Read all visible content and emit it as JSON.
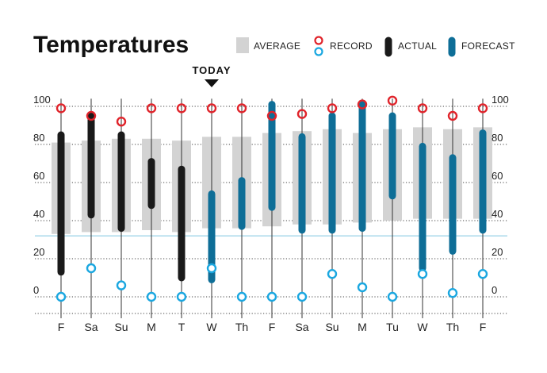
{
  "chart_data": {
    "type": "bar",
    "title": "Temperatures",
    "today_label": "TODAY",
    "today_index": 5,
    "legend": {
      "average": "AVERAGE",
      "record": "RECORD",
      "actual": "ACTUAL",
      "forecast": "FORECAST"
    },
    "ylim": [
      -5,
      105
    ],
    "yticks": [
      0,
      20,
      40,
      60,
      80,
      100
    ],
    "freezing_line": 32,
    "categories": [
      "F",
      "Sa",
      "Su",
      "M",
      "T",
      "W",
      "Th",
      "F",
      "Sa",
      "Su",
      "M",
      "Tu",
      "W",
      "Th",
      "F"
    ],
    "series": [
      {
        "name": "AVERAGE",
        "low": [
          33,
          34,
          34,
          35,
          34,
          36,
          36,
          37,
          38,
          38,
          39,
          40,
          41,
          41,
          41
        ],
        "high": [
          81,
          82,
          83,
          83,
          82,
          84,
          84,
          86,
          87,
          88,
          86,
          88,
          89,
          88,
          89
        ]
      },
      {
        "name": "RECORD",
        "low": [
          0,
          15,
          6,
          0,
          0,
          15,
          0,
          0,
          0,
          12,
          5,
          0,
          12,
          2,
          12
        ],
        "high": [
          99,
          95,
          92,
          99,
          99,
          99,
          99,
          95,
          96,
          99,
          101,
          103,
          99,
          95,
          99
        ]
      },
      {
        "name": "ACTUAL",
        "low": [
          13,
          43,
          36,
          48,
          10,
          null,
          null,
          null,
          null,
          null,
          null,
          null,
          null,
          null,
          null
        ],
        "high": [
          85,
          95,
          85,
          71,
          67,
          null,
          null,
          null,
          null,
          null,
          null,
          null,
          null,
          null,
          null
        ]
      },
      {
        "name": "FORECAST",
        "low": [
          null,
          null,
          null,
          null,
          null,
          9,
          37,
          47,
          35,
          35,
          36,
          53,
          15,
          24,
          35
        ],
        "high": [
          null,
          null,
          null,
          null,
          null,
          54,
          61,
          101,
          84,
          95,
          101,
          95,
          79,
          73,
          86
        ]
      }
    ],
    "colors": {
      "average": "#d3d3d3",
      "record_high": "#e0242b",
      "record_low": "#1aa7e0",
      "actual": "#1a1a1a",
      "forecast": "#0e6e97",
      "freezing": "#a8d8ea"
    }
  }
}
